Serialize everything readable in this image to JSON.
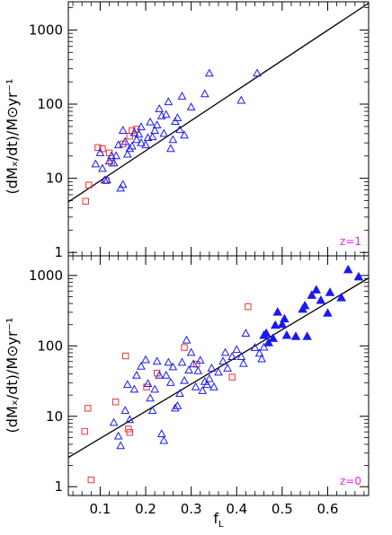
{
  "chart_data": {
    "type": "scatter",
    "shared_xaxis": {
      "label_main": "f",
      "label_sub": "L",
      "lim": [
        0.03,
        0.69
      ],
      "ticks": [
        0.1,
        0.2,
        0.3,
        0.4,
        0.5,
        0.6
      ],
      "tick_labels": [
        "0.1",
        "0.2",
        "0.3",
        "0.4",
        "0.5",
        "0.6"
      ]
    },
    "yaxis": {
      "scale": "log",
      "label": "(dMₓ/dt)/M⊙yr⁻¹",
      "tick_values": [
        1,
        10,
        100,
        1000
      ],
      "tick_labels": [
        "1",
        "10",
        "100",
        "1000"
      ]
    },
    "colors": {
      "triangle": "#1a1aee",
      "square": "#ee3333",
      "fit_line": "#000000",
      "panel_tag": "#ee22ee"
    },
    "panels": [
      {
        "tag": "z=1",
        "ylim": [
          0.9,
          2400
        ],
        "fit_line": {
          "x": [
            0.03,
            0.69
          ],
          "y": [
            4.8,
            2300
          ]
        },
        "series": [
          {
            "marker": "open-square",
            "points": [
              [
                0.068,
                4.9
              ],
              [
                0.075,
                8.1
              ],
              [
                0.095,
                26
              ],
              [
                0.105,
                25
              ],
              [
                0.113,
                9.3
              ],
              [
                0.12,
                22
              ],
              [
                0.125,
                16
              ],
              [
                0.15,
                29
              ],
              [
                0.165,
                37
              ],
              [
                0.17,
                44
              ],
              [
                0.18,
                46
              ]
            ]
          },
          {
            "marker": "open-triangle",
            "points": [
              [
                0.09,
                15.5
              ],
              [
                0.1,
                22
              ],
              [
                0.105,
                13.5
              ],
              [
                0.11,
                9.4
              ],
              [
                0.115,
                9.4
              ],
              [
                0.12,
                17
              ],
              [
                0.125,
                20
              ],
              [
                0.13,
                16
              ],
              [
                0.135,
                20
              ],
              [
                0.14,
                28
              ],
              [
                0.145,
                7.3
              ],
              [
                0.15,
                8.2
              ],
              [
                0.15,
                44
              ],
              [
                0.155,
                31
              ],
              [
                0.16,
                21
              ],
              [
                0.165,
                25
              ],
              [
                0.17,
                27
              ],
              [
                0.175,
                41
              ],
              [
                0.18,
                33
              ],
              [
                0.185,
                39
              ],
              [
                0.19,
                49
              ],
              [
                0.19,
                30
              ],
              [
                0.2,
                28
              ],
              [
                0.205,
                35
              ],
              [
                0.21,
                57
              ],
              [
                0.215,
                36
              ],
              [
                0.22,
                44
              ],
              [
                0.225,
                52
              ],
              [
                0.23,
                86
              ],
              [
                0.235,
                69
              ],
              [
                0.24,
                40
              ],
              [
                0.245,
                72
              ],
              [
                0.25,
                107
              ],
              [
                0.255,
                25
              ],
              [
                0.26,
                33
              ],
              [
                0.265,
                58
              ],
              [
                0.27,
                65
              ],
              [
                0.275,
                45
              ],
              [
                0.28,
                127
              ],
              [
                0.285,
                38
              ],
              [
                0.3,
                91
              ],
              [
                0.33,
                137
              ],
              [
                0.34,
                260
              ],
              [
                0.41,
                112
              ],
              [
                0.445,
                260
              ]
            ]
          }
        ]
      },
      {
        "tag": "z=0",
        "ylim": [
          0.75,
          1900
        ],
        "fit_line": {
          "x": [
            0.03,
            0.69
          ],
          "y": [
            2.6,
            920
          ]
        },
        "series": [
          {
            "marker": "open-square",
            "points": [
              [
                0.066,
                6.1
              ],
              [
                0.073,
                13
              ],
              [
                0.08,
                1.25
              ],
              [
                0.134,
                16
              ],
              [
                0.156,
                72
              ],
              [
                0.162,
                6.6
              ],
              [
                0.165,
                5.9
              ],
              [
                0.202,
                26
              ],
              [
                0.225,
                41
              ],
              [
                0.285,
                95
              ],
              [
                0.312,
                55
              ],
              [
                0.39,
                36
              ],
              [
                0.425,
                360
              ]
            ]
          },
          {
            "marker": "open-triangle",
            "points": [
              [
                0.13,
                8.1
              ],
              [
                0.14,
                5.2
              ],
              [
                0.145,
                3.8
              ],
              [
                0.155,
                12
              ],
              [
                0.16,
                28
              ],
              [
                0.165,
                8.9
              ],
              [
                0.175,
                24
              ],
              [
                0.18,
                38
              ],
              [
                0.19,
                51
              ],
              [
                0.2,
                63
              ],
              [
                0.205,
                29
              ],
              [
                0.21,
                18
              ],
              [
                0.215,
                12
              ],
              [
                0.22,
                24
              ],
              [
                0.225,
                60
              ],
              [
                0.23,
                38
              ],
              [
                0.235,
                5.6
              ],
              [
                0.24,
                4.5
              ],
              [
                0.245,
                38
              ],
              [
                0.25,
                58
              ],
              [
                0.255,
                30
              ],
              [
                0.26,
                50
              ],
              [
                0.265,
                13
              ],
              [
                0.27,
                14
              ],
              [
                0.275,
                21
              ],
              [
                0.28,
                58
              ],
              [
                0.285,
                32
              ],
              [
                0.29,
                120
              ],
              [
                0.295,
                45
              ],
              [
                0.3,
                80
              ],
              [
                0.305,
                55
              ],
              [
                0.31,
                26
              ],
              [
                0.315,
                44
              ],
              [
                0.32,
                62
              ],
              [
                0.325,
                23
              ],
              [
                0.33,
                31
              ],
              [
                0.335,
                28
              ],
              [
                0.34,
                34
              ],
              [
                0.345,
                48
              ],
              [
                0.35,
                26
              ],
              [
                0.36,
                42
              ],
              [
                0.37,
                60
              ],
              [
                0.375,
                80
              ],
              [
                0.38,
                48
              ],
              [
                0.39,
                70
              ],
              [
                0.4,
                88
              ],
              [
                0.41,
                70
              ],
              [
                0.415,
                56
              ],
              [
                0.42,
                150
              ],
              [
                0.44,
                94
              ],
              [
                0.45,
                78
              ],
              [
                0.455,
                65
              ],
              [
                0.46,
                95
              ]
            ]
          },
          {
            "marker": "filled-triangle",
            "points": [
              [
                0.46,
                140
              ],
              [
                0.465,
                150
              ],
              [
                0.47,
                110
              ],
              [
                0.48,
                127
              ],
              [
                0.485,
                195
              ],
              [
                0.49,
                300
              ],
              [
                0.5,
                200
              ],
              [
                0.505,
                240
              ],
              [
                0.51,
                140
              ],
              [
                0.53,
                135
              ],
              [
                0.545,
                330
              ],
              [
                0.55,
                370
              ],
              [
                0.555,
                135
              ],
              [
                0.565,
                520
              ],
              [
                0.575,
                620
              ],
              [
                0.585,
                440
              ],
              [
                0.6,
                290
              ],
              [
                0.605,
                570
              ],
              [
                0.63,
                480
              ],
              [
                0.645,
                1200
              ],
              [
                0.668,
                950
              ]
            ]
          }
        ]
      }
    ]
  }
}
